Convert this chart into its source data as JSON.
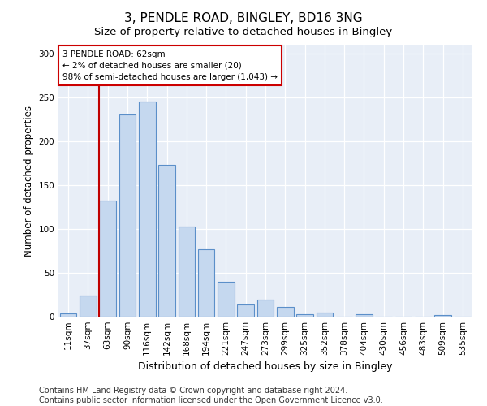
{
  "title": "3, PENDLE ROAD, BINGLEY, BD16 3NG",
  "subtitle": "Size of property relative to detached houses in Bingley",
  "xlabel": "Distribution of detached houses by size in Bingley",
  "ylabel": "Number of detached properties",
  "categories": [
    "11sqm",
    "37sqm",
    "63sqm",
    "90sqm",
    "116sqm",
    "142sqm",
    "168sqm",
    "194sqm",
    "221sqm",
    "247sqm",
    "273sqm",
    "299sqm",
    "325sqm",
    "352sqm",
    "378sqm",
    "404sqm",
    "430sqm",
    "456sqm",
    "483sqm",
    "509sqm",
    "535sqm"
  ],
  "values": [
    4,
    24,
    132,
    230,
    245,
    173,
    103,
    77,
    40,
    14,
    19,
    11,
    3,
    5,
    0,
    3,
    0,
    0,
    0,
    2,
    0
  ],
  "bar_color": "#c5d8ef",
  "bar_edge_color": "#5b8fc9",
  "vline_color": "#c00000",
  "annotation_line1": "3 PENDLE ROAD: 62sqm",
  "annotation_line2": "← 2% of detached houses are smaller (20)",
  "annotation_line3": "98% of semi-detached houses are larger (1,043) →",
  "annotation_box_facecolor": "#ffffff",
  "annotation_box_edgecolor": "#cc0000",
  "ylim": [
    0,
    310
  ],
  "yticks": [
    0,
    50,
    100,
    150,
    200,
    250,
    300
  ],
  "bg_color": "#ffffff",
  "plot_bg_color": "#e8eef7",
  "grid_color": "#ffffff",
  "title_fontsize": 11,
  "subtitle_fontsize": 9.5,
  "xlabel_fontsize": 9,
  "ylabel_fontsize": 8.5,
  "tick_fontsize": 7.5,
  "footer_fontsize": 7,
  "footer_line1": "Contains HM Land Registry data © Crown copyright and database right 2024.",
  "footer_line2": "Contains public sector information licensed under the Open Government Licence v3.0."
}
